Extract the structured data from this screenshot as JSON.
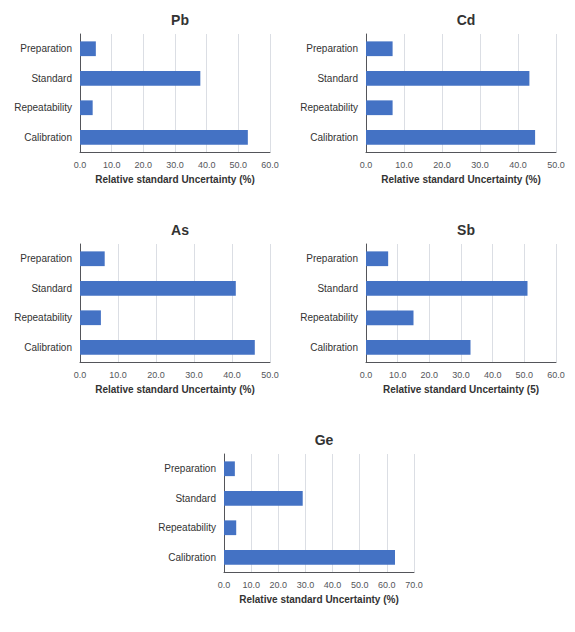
{
  "chart_data": [
    {
      "type": "bar",
      "orientation": "horizontal",
      "title": "Pb",
      "categories": [
        "Preparation",
        "Standard",
        "Repeatability",
        "Calibration"
      ],
      "values": [
        5.0,
        38.0,
        4.0,
        53.0
      ],
      "color": "#4472C4",
      "xlim": [
        0,
        60
      ],
      "xticks": [
        {
          "value": 0,
          "label": "0.0"
        },
        {
          "value": 10,
          "label": "10.0"
        },
        {
          "value": 20,
          "label": "20.0"
        },
        {
          "value": 30,
          "label": "30.0"
        },
        {
          "value": 40,
          "label": "40.0"
        },
        {
          "value": 50,
          "label": "50.0"
        },
        {
          "value": 60,
          "label": "60.0"
        }
      ],
      "xlabel": "Relative standard Uncertainty (%)",
      "grid": true
    },
    {
      "type": "bar",
      "orientation": "horizontal",
      "title": "Cd",
      "categories": [
        "Preparation",
        "Standard",
        "Repeatability",
        "Calibration"
      ],
      "values": [
        7.0,
        43.0,
        7.0,
        44.5
      ],
      "color": "#4472C4",
      "xlim": [
        0,
        50
      ],
      "xticks": [
        {
          "value": 0,
          "label": "0.0"
        },
        {
          "value": 10,
          "label": "10.0"
        },
        {
          "value": 20,
          "label": "20.0"
        },
        {
          "value": 30,
          "label": "30.0"
        },
        {
          "value": 40,
          "label": "40.0"
        },
        {
          "value": 50,
          "label": "50.0"
        }
      ],
      "xlabel": "Relative standard Uncertainty (%)",
      "grid": true
    },
    {
      "type": "bar",
      "orientation": "horizontal",
      "title": "As",
      "categories": [
        "Preparation",
        "Standard",
        "Repeatability",
        "Calibration"
      ],
      "values": [
        6.5,
        41.0,
        5.5,
        46.0
      ],
      "color": "#4472C4",
      "xlim": [
        0,
        50
      ],
      "xticks": [
        {
          "value": 0,
          "label": "0.0"
        },
        {
          "value": 10,
          "label": "10.0"
        },
        {
          "value": 20,
          "label": "20.0"
        },
        {
          "value": 30,
          "label": "30.0"
        },
        {
          "value": 40,
          "label": "40.0"
        },
        {
          "value": 50,
          "label": "50.0"
        }
      ],
      "xlabel": "Relative standard Uncertainty (%)",
      "grid": true
    },
    {
      "type": "bar",
      "orientation": "horizontal",
      "title": "Sb",
      "categories": [
        "Preparation",
        "Standard",
        "Repeatability",
        "Calibration"
      ],
      "values": [
        7.0,
        51.0,
        15.0,
        33.0
      ],
      "color": "#4472C4",
      "xlim": [
        0,
        60
      ],
      "xticks": [
        {
          "value": 0,
          "label": "0.0"
        },
        {
          "value": 10,
          "label": "10.0"
        },
        {
          "value": 20,
          "label": "20.0"
        },
        {
          "value": 30,
          "label": "30.0"
        },
        {
          "value": 40,
          "label": "40.0"
        },
        {
          "value": 50,
          "label": "50.0"
        },
        {
          "value": 60,
          "label": "60.0"
        }
      ],
      "xlabel": "Relative standard Uncertainty (5)",
      "grid": true
    },
    {
      "type": "bar",
      "orientation": "horizontal",
      "title": "Ge",
      "categories": [
        "Preparation",
        "Standard",
        "Repeatability",
        "Calibration"
      ],
      "values": [
        4.0,
        29.0,
        4.5,
        63.0
      ],
      "color": "#4472C4",
      "xlim": [
        0,
        70
      ],
      "xticks": [
        {
          "value": 0,
          "label": "0.0"
        },
        {
          "value": 10,
          "label": "10.0"
        },
        {
          "value": 20,
          "label": "20.0"
        },
        {
          "value": 30,
          "label": "30.0"
        },
        {
          "value": 40,
          "label": "40.0"
        },
        {
          "value": 50,
          "label": "50.0"
        },
        {
          "value": 60,
          "label": "60.0"
        },
        {
          "value": 70,
          "label": "70.0"
        }
      ],
      "xlabel": "Relative standard Uncertainty (%)",
      "grid": true
    }
  ]
}
